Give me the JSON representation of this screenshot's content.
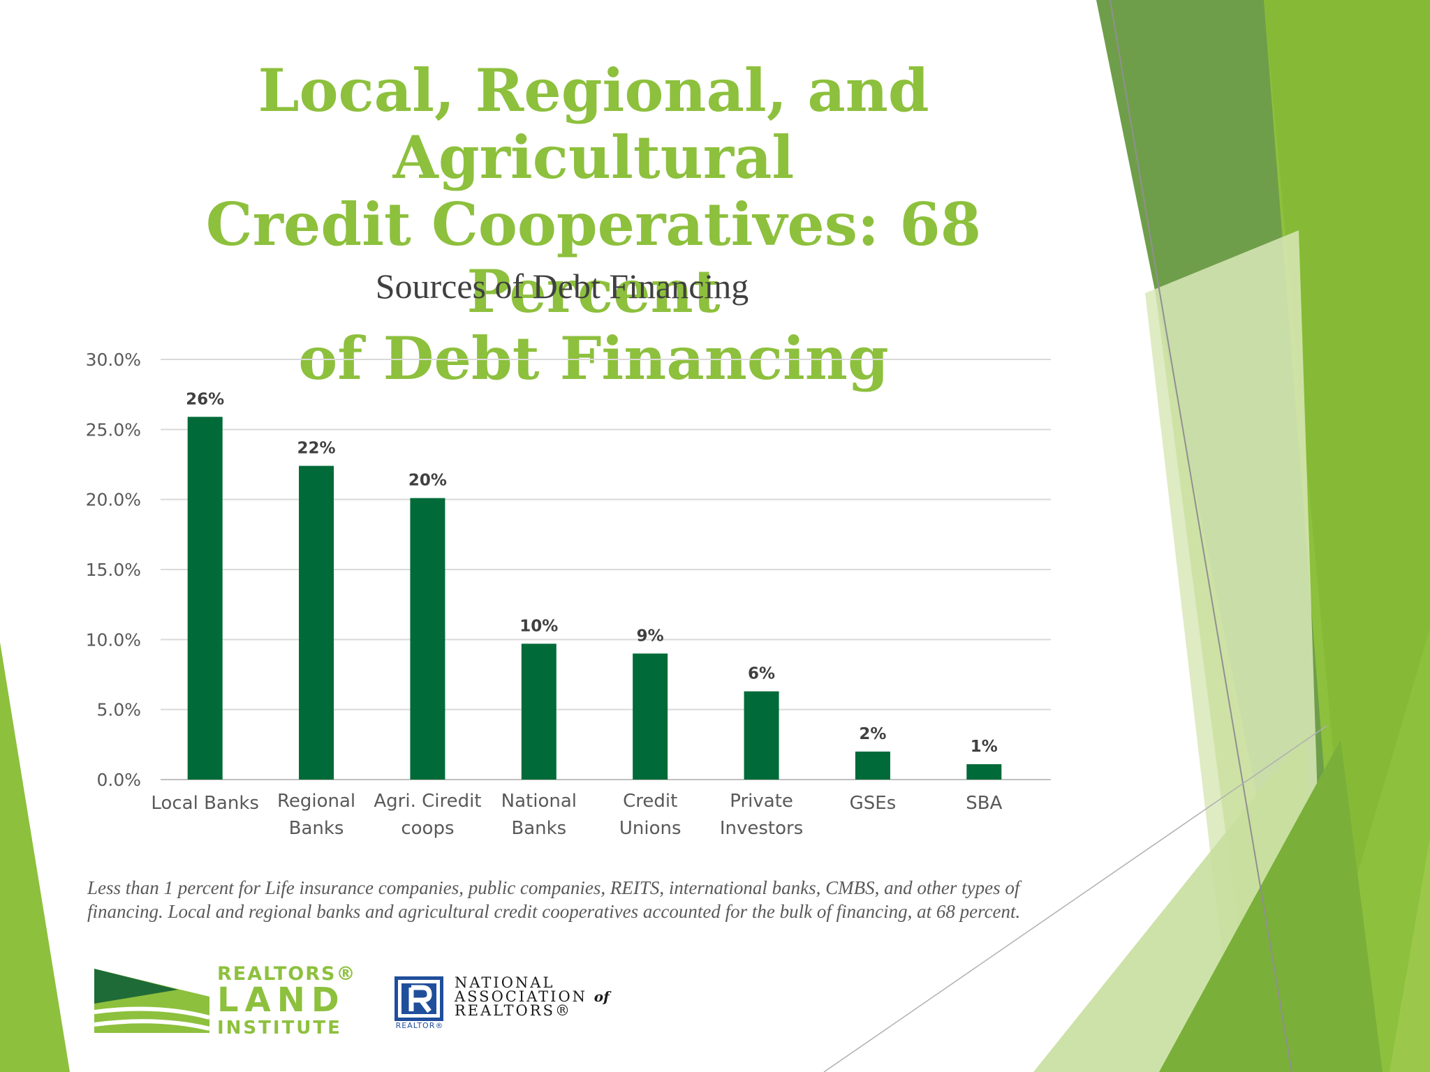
{
  "slide": {
    "title_lines": [
      "Local, Regional, and Agricultural",
      "Credit Cooperatives: 68 Percent",
      "of Debt Financing"
    ],
    "footnote": "Less than 1 percent for Life insurance companies, public companies, REITS, international banks, CMBS, and other types of financing. Local and regional banks and agricultural credit cooperatives accounted for the bulk of financing, at 68  percent."
  },
  "theme": {
    "accent_green": "#8dc03d",
    "bar_color": "#006a38",
    "dark_green": "#6a9e43",
    "light_green": "#d9e8b8"
  },
  "logos": {
    "rli": {
      "line1": "REALTORS®",
      "line2": "LAND",
      "line3": "INSTITUTE"
    },
    "nar": {
      "line1": "NATIONAL",
      "line2": "ASSOCIATION",
      "line2_suffix": "of",
      "line3": "REALTORS®",
      "tag": "REALTOR®"
    }
  },
  "chart_data": {
    "type": "bar",
    "title": "Sources of Debt Financing",
    "xlabel": "",
    "ylabel": "",
    "categories": [
      [
        "Local Banks"
      ],
      [
        "Regional",
        "Banks"
      ],
      [
        "Agri. Ciredit",
        "coops"
      ],
      [
        "National",
        "Banks"
      ],
      [
        "Credit",
        "Unions"
      ],
      [
        "Private",
        "Investors"
      ],
      [
        "GSEs"
      ],
      [
        "SBA"
      ]
    ],
    "values": [
      25.9,
      22.4,
      20.1,
      9.7,
      9.0,
      6.3,
      2.0,
      1.1
    ],
    "data_labels": [
      "26%",
      "22%",
      "20%",
      "10%",
      "9%",
      "6%",
      "2%",
      "1%"
    ],
    "ylim": [
      0,
      30
    ],
    "yticks": [
      "0.0%",
      "5.0%",
      "10.0%",
      "15.0%",
      "20.0%",
      "25.0%",
      "30.0%"
    ],
    "grid": true,
    "legend": "none"
  }
}
